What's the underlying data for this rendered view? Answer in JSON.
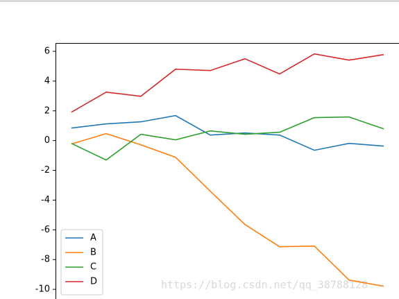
{
  "chart_data": {
    "type": "line",
    "x": [
      0,
      1,
      2,
      3,
      4,
      5,
      6,
      7,
      8,
      9
    ],
    "xlim": [
      -0.46,
      9.44
    ],
    "ylim": [
      -10.65,
      6.56
    ],
    "yticks": [
      6,
      4,
      2,
      0,
      -2,
      -4,
      -6,
      -8,
      -10
    ],
    "legend": "lower left",
    "watermark": "https://blog.csdn.net/qq_38788128",
    "series": [
      {
        "name": "A",
        "color": "#1f77b4",
        "values": [
          0.84,
          1.12,
          1.26,
          1.68,
          0.37,
          0.51,
          0.37,
          -0.65,
          -0.19,
          -0.37
        ]
      },
      {
        "name": "B",
        "color": "#ff7f0e",
        "values": [
          -0.23,
          0.47,
          -0.28,
          -1.12,
          -3.4,
          -5.64,
          -7.14,
          -7.09,
          -9.37,
          -9.79
        ]
      },
      {
        "name": "C",
        "color": "#2ca02c",
        "values": [
          -0.19,
          -1.31,
          0.42,
          0.05,
          0.65,
          0.42,
          0.56,
          1.54,
          1.59,
          0.79
        ]
      },
      {
        "name": "D",
        "color": "#d62728",
        "values": [
          1.91,
          3.26,
          2.98,
          4.8,
          4.71,
          5.5,
          4.48,
          5.83,
          5.41,
          5.78
        ]
      }
    ]
  }
}
